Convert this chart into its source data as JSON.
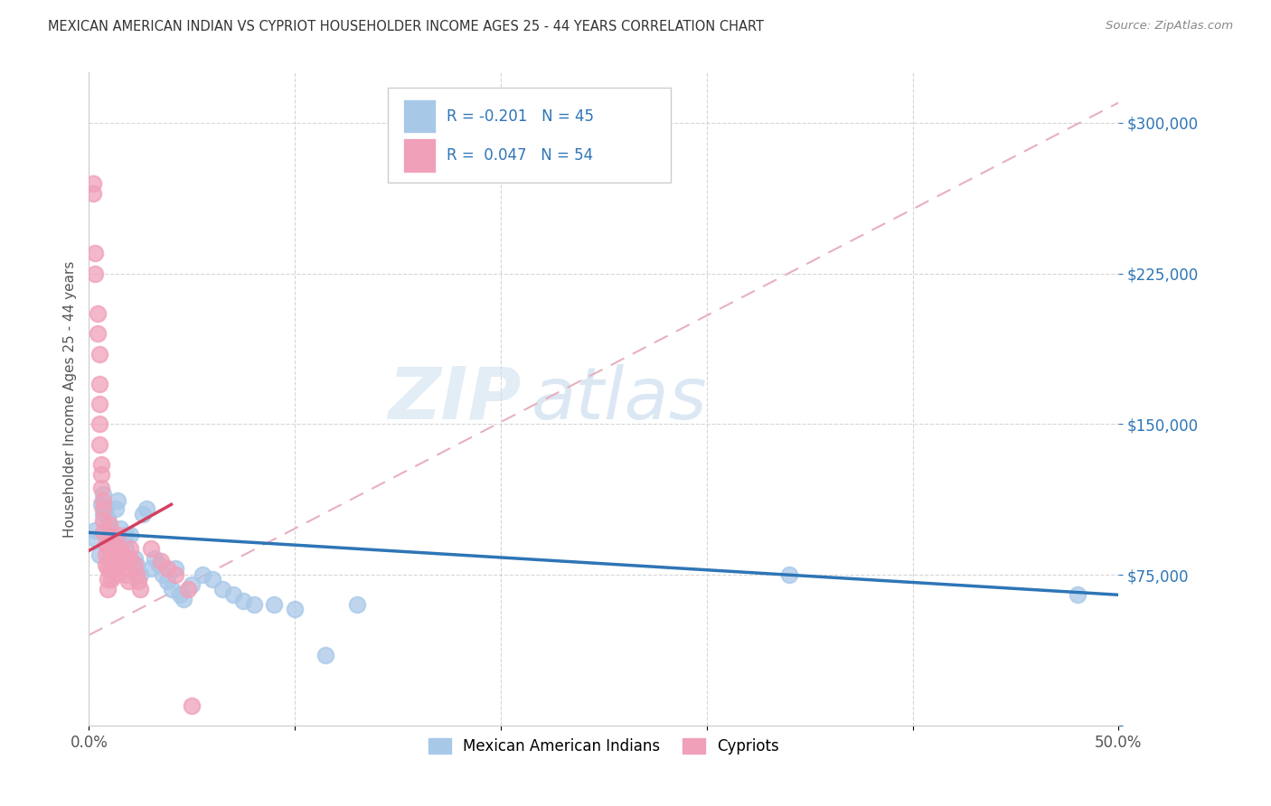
{
  "title": "MEXICAN AMERICAN INDIAN VS CYPRIOT HOUSEHOLDER INCOME AGES 25 - 44 YEARS CORRELATION CHART",
  "source": "Source: ZipAtlas.com",
  "ylabel": "Householder Income Ages 25 - 44 years",
  "legend_label1": "Mexican American Indians",
  "legend_label2": "Cypriots",
  "R1": -0.201,
  "N1": 45,
  "R2": 0.047,
  "N2": 54,
  "color_blue": "#a8c8e8",
  "color_pink": "#f0a0b8",
  "line_color_blue": "#2e75b6",
  "line_color_pink": "#d44060",
  "line_color_pink_dash": "#e8b0be",
  "watermark_zip": "ZIP",
  "watermark_atlas": "atlas",
  "xlim": [
    0.0,
    0.5
  ],
  "ylim": [
    0,
    325000
  ],
  "yticks": [
    0,
    75000,
    150000,
    225000,
    300000
  ],
  "xticks": [
    0.0,
    0.1,
    0.2,
    0.3,
    0.4,
    0.5
  ],
  "blue_x": [
    0.003,
    0.003,
    0.005,
    0.006,
    0.007,
    0.007,
    0.008,
    0.009,
    0.01,
    0.011,
    0.012,
    0.013,
    0.014,
    0.015,
    0.016,
    0.018,
    0.018,
    0.02,
    0.022,
    0.023,
    0.025,
    0.026,
    0.028,
    0.03,
    0.032,
    0.034,
    0.036,
    0.038,
    0.04,
    0.042,
    0.044,
    0.046,
    0.05,
    0.055,
    0.06,
    0.065,
    0.07,
    0.075,
    0.08,
    0.09,
    0.1,
    0.115,
    0.13,
    0.34,
    0.48
  ],
  "blue_y": [
    97000,
    93000,
    85000,
    110000,
    105000,
    115000,
    108000,
    103000,
    98000,
    93000,
    88000,
    108000,
    112000,
    98000,
    93000,
    95000,
    88000,
    95000,
    83000,
    80000,
    75000,
    105000,
    108000,
    78000,
    83000,
    80000,
    75000,
    72000,
    68000,
    78000,
    65000,
    63000,
    70000,
    75000,
    73000,
    68000,
    65000,
    62000,
    60000,
    60000,
    58000,
    35000,
    60000,
    75000,
    65000
  ],
  "pink_x": [
    0.002,
    0.002,
    0.003,
    0.003,
    0.004,
    0.004,
    0.005,
    0.005,
    0.005,
    0.005,
    0.005,
    0.006,
    0.006,
    0.006,
    0.007,
    0.007,
    0.007,
    0.007,
    0.008,
    0.008,
    0.008,
    0.009,
    0.009,
    0.009,
    0.01,
    0.01,
    0.01,
    0.01,
    0.011,
    0.011,
    0.012,
    0.012,
    0.013,
    0.013,
    0.013,
    0.014,
    0.015,
    0.016,
    0.017,
    0.017,
    0.018,
    0.019,
    0.02,
    0.02,
    0.022,
    0.023,
    0.024,
    0.025,
    0.03,
    0.035,
    0.038,
    0.042,
    0.048,
    0.05
  ],
  "pink_y": [
    270000,
    265000,
    235000,
    225000,
    205000,
    195000,
    185000,
    170000,
    160000,
    150000,
    140000,
    130000,
    125000,
    118000,
    112000,
    108000,
    102000,
    96000,
    90000,
    85000,
    80000,
    78000,
    73000,
    68000,
    100000,
    95000,
    88000,
    83000,
    78000,
    73000,
    90000,
    85000,
    82000,
    78000,
    75000,
    95000,
    88000,
    85000,
    82000,
    78000,
    75000,
    72000,
    88000,
    83000,
    80000,
    75000,
    72000,
    68000,
    88000,
    82000,
    78000,
    75000,
    68000,
    10000
  ]
}
